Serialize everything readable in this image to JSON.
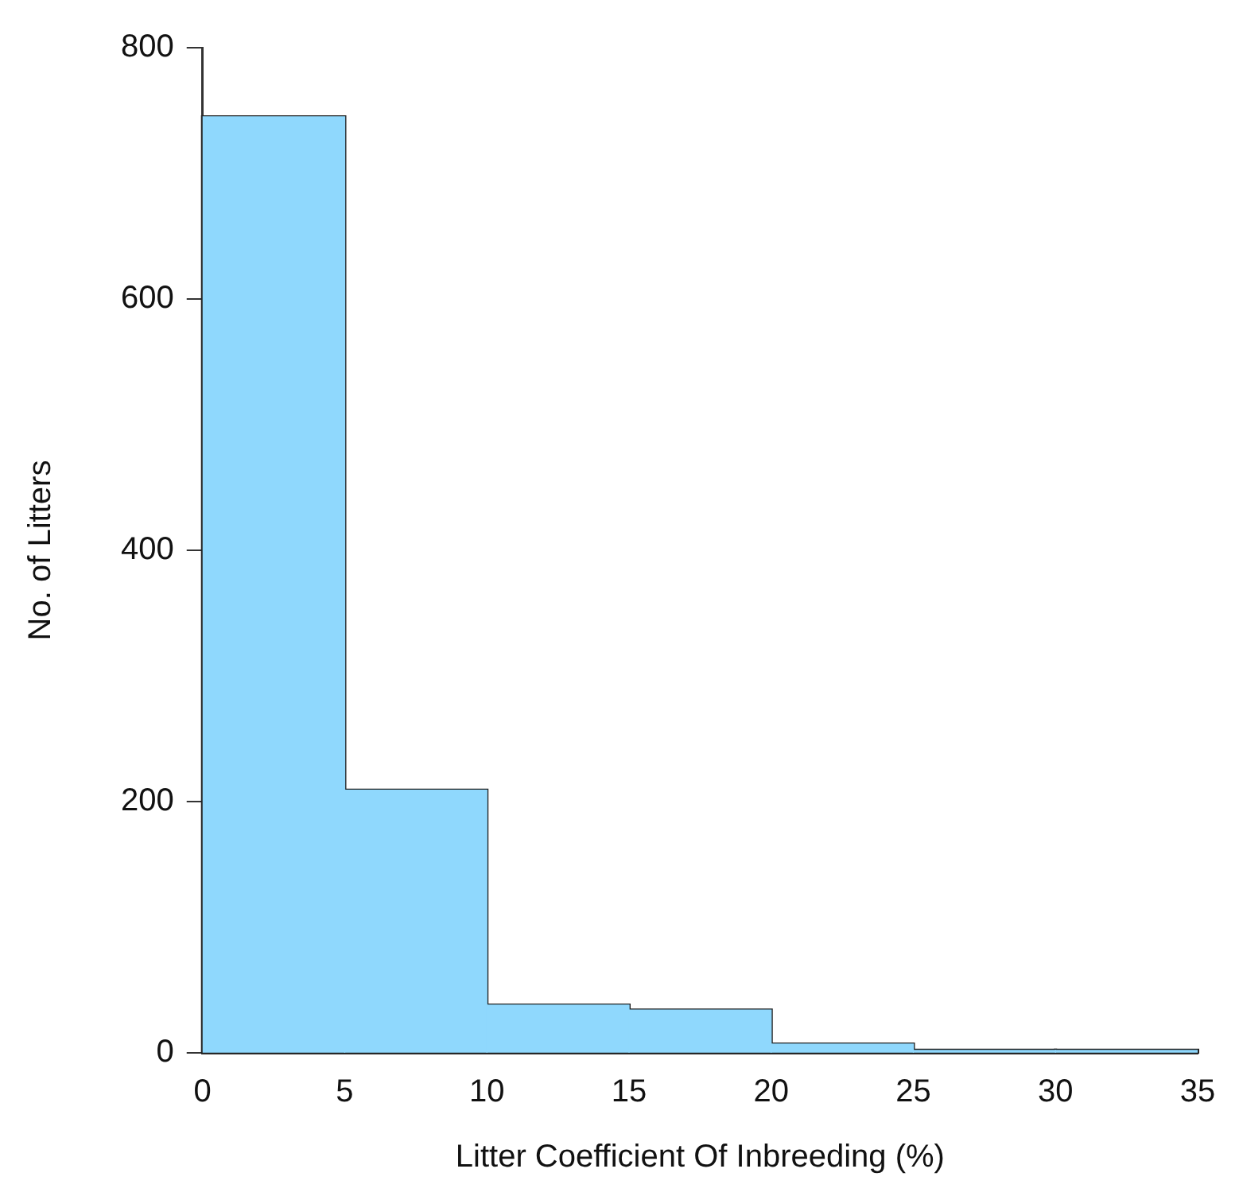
{
  "chart_data": {
    "type": "histogram",
    "xlabel": "Litter Coefficient Of Inbreeding (%)",
    "ylabel": "No. of Litters",
    "bins": [
      0,
      5,
      10,
      15,
      20,
      25,
      30,
      35
    ],
    "values": [
      745,
      209,
      38,
      34,
      7,
      2,
      2
    ],
    "color": "#8fd8fd",
    "xlim": [
      0,
      35
    ],
    "xticks": [
      0,
      5,
      10,
      15,
      20,
      25,
      30,
      35
    ],
    "ylim": [
      0,
      800
    ],
    "yticks": [
      0,
      200,
      400,
      600,
      800
    ],
    "grid": false,
    "legend": false
  }
}
